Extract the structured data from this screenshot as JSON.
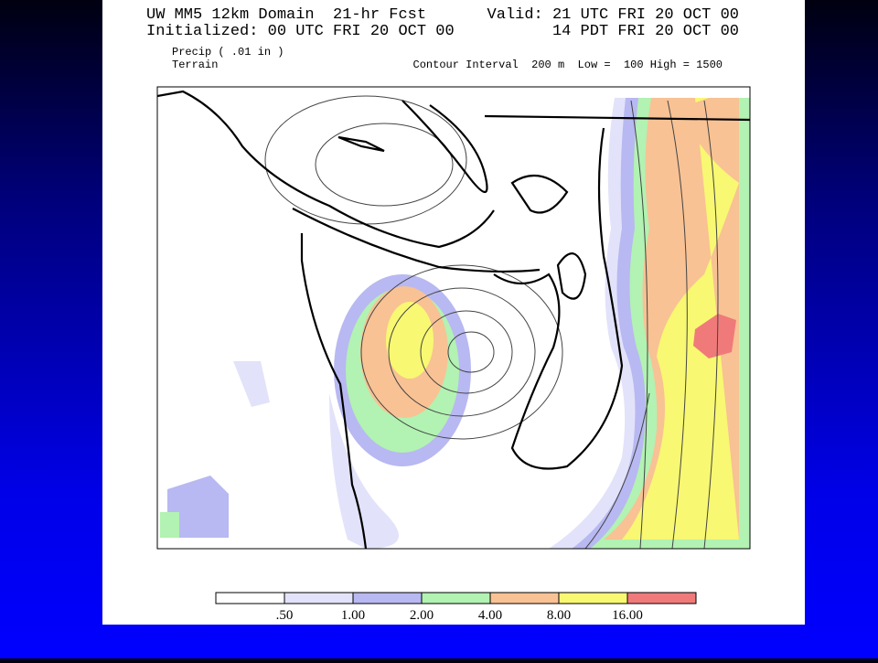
{
  "header": {
    "left_line1": "UW MM5 12km Domain  21-hr Fcst",
    "left_line2": "Initialized: 00 UTC FRI 20 OCT 00",
    "right_line1": "Valid: 21 UTC FRI 20 OCT 00",
    "right_line2": "14 PDT FRI 20 OCT 00"
  },
  "fields": {
    "precip": "Precip ( .01 in )",
    "terrain": "Terrain",
    "contour": "Contour Interval  200 m  Low =  100 High = 1500"
  },
  "colorbar": {
    "colors": [
      "#ffffff",
      "#e2e2fa",
      "#b8b8f2",
      "#b2f2b2",
      "#f8c294",
      "#f8f872",
      "#f07a7a"
    ],
    "labels": [
      ".50",
      "1.00",
      "2.00",
      "4.00",
      "8.00",
      "16.00"
    ]
  }
}
